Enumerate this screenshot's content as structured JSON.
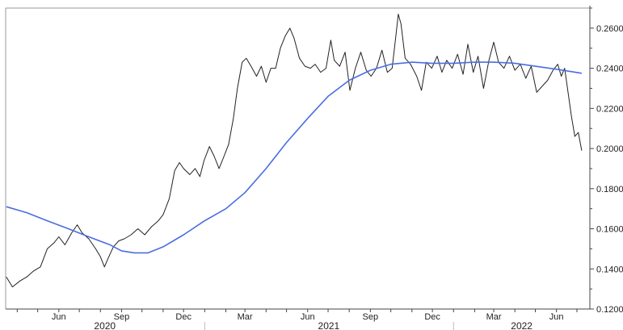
{
  "chart_data": {
    "type": "line",
    "title": "",
    "xlabel": "",
    "ylabel": "",
    "ylim": [
      0.12,
      0.27
    ],
    "y_axis_position": "right",
    "grid": false,
    "legend": "none",
    "y_ticks": [
      "0.1200",
      "0.1400",
      "0.1600",
      "0.1800",
      "0.2000",
      "0.2200",
      "0.2400",
      "0.2600"
    ],
    "x_month_ticks": [
      {
        "date": "2020-06-01",
        "label": "Jun"
      },
      {
        "date": "2020-09-01",
        "label": "Sep"
      },
      {
        "date": "2020-12-01",
        "label": "Dec"
      },
      {
        "date": "2021-03-01",
        "label": "Mar"
      },
      {
        "date": "2021-06-01",
        "label": "Jun"
      },
      {
        "date": "2021-09-01",
        "label": "Sep"
      },
      {
        "date": "2021-12-01",
        "label": "Dec"
      },
      {
        "date": "2022-03-01",
        "label": "Mar"
      },
      {
        "date": "2022-06-01",
        "label": "Jun"
      }
    ],
    "x_year_labels": [
      {
        "label": "2020",
        "start": "2020-03-15",
        "end": "2020-12-31"
      },
      {
        "label": "2021",
        "start": "2021-01-01",
        "end": "2021-12-31"
      },
      {
        "label": "2022",
        "start": "2022-01-01",
        "end": "2022-07-20"
      }
    ],
    "xlim": [
      "2020-03-15",
      "2022-07-20"
    ],
    "series": [
      {
        "color": "#222222",
        "points": [
          [
            "2020-03-16",
            0.136
          ],
          [
            "2020-03-25",
            0.131
          ],
          [
            "2020-04-05",
            0.134
          ],
          [
            "2020-04-15",
            0.136
          ],
          [
            "2020-04-25",
            0.139
          ],
          [
            "2020-05-05",
            0.141
          ],
          [
            "2020-05-15",
            0.15
          ],
          [
            "2020-05-25",
            0.153
          ],
          [
            "2020-06-01",
            0.156
          ],
          [
            "2020-06-10",
            0.152
          ],
          [
            "2020-06-20",
            0.158
          ],
          [
            "2020-06-28",
            0.162
          ],
          [
            "2020-07-05",
            0.158
          ],
          [
            "2020-07-15",
            0.155
          ],
          [
            "2020-07-25",
            0.15
          ],
          [
            "2020-08-01",
            0.146
          ],
          [
            "2020-08-07",
            0.141
          ],
          [
            "2020-08-12",
            0.145
          ],
          [
            "2020-08-20",
            0.151
          ],
          [
            "2020-08-28",
            0.154
          ],
          [
            "2020-09-05",
            0.155
          ],
          [
            "2020-09-15",
            0.157
          ],
          [
            "2020-09-25",
            0.16
          ],
          [
            "2020-10-05",
            0.157
          ],
          [
            "2020-10-15",
            0.161
          ],
          [
            "2020-10-25",
            0.164
          ],
          [
            "2020-11-01",
            0.167
          ],
          [
            "2020-11-10",
            0.175
          ],
          [
            "2020-11-18",
            0.189
          ],
          [
            "2020-11-25",
            0.193
          ],
          [
            "2020-12-01",
            0.19
          ],
          [
            "2020-12-10",
            0.187
          ],
          [
            "2020-12-18",
            0.19
          ],
          [
            "2020-12-25",
            0.186
          ],
          [
            "2020-12-31",
            0.194
          ],
          [
            "2021-01-08",
            0.201
          ],
          [
            "2021-01-15",
            0.196
          ],
          [
            "2021-01-22",
            0.19
          ],
          [
            "2021-01-28",
            0.195
          ],
          [
            "2021-02-05",
            0.202
          ],
          [
            "2021-02-12",
            0.215
          ],
          [
            "2021-02-18",
            0.23
          ],
          [
            "2021-02-25",
            0.243
          ],
          [
            "2021-03-03",
            0.245
          ],
          [
            "2021-03-10",
            0.241
          ],
          [
            "2021-03-18",
            0.236
          ],
          [
            "2021-03-25",
            0.241
          ],
          [
            "2021-04-01",
            0.233
          ],
          [
            "2021-04-08",
            0.24
          ],
          [
            "2021-04-15",
            0.24
          ],
          [
            "2021-04-22",
            0.25
          ],
          [
            "2021-04-29",
            0.256
          ],
          [
            "2021-05-06",
            0.26
          ],
          [
            "2021-05-12",
            0.255
          ],
          [
            "2021-05-20",
            0.245
          ],
          [
            "2021-05-28",
            0.241
          ],
          [
            "2021-06-05",
            0.24
          ],
          [
            "2021-06-12",
            0.242
          ],
          [
            "2021-06-20",
            0.238
          ],
          [
            "2021-06-28",
            0.24
          ],
          [
            "2021-07-05",
            0.254
          ],
          [
            "2021-07-10",
            0.244
          ],
          [
            "2021-07-18",
            0.241
          ],
          [
            "2021-07-26",
            0.248
          ],
          [
            "2021-08-02",
            0.229
          ],
          [
            "2021-08-10",
            0.24
          ],
          [
            "2021-08-18",
            0.248
          ],
          [
            "2021-08-26",
            0.239
          ],
          [
            "2021-09-02",
            0.236
          ],
          [
            "2021-09-10",
            0.24
          ],
          [
            "2021-09-18",
            0.249
          ],
          [
            "2021-09-26",
            0.238
          ],
          [
            "2021-10-03",
            0.24
          ],
          [
            "2021-10-08",
            0.255
          ],
          [
            "2021-10-12",
            0.267
          ],
          [
            "2021-10-16",
            0.262
          ],
          [
            "2021-10-22",
            0.245
          ],
          [
            "2021-10-30",
            0.242
          ],
          [
            "2021-11-08",
            0.236
          ],
          [
            "2021-11-15",
            0.229
          ],
          [
            "2021-11-22",
            0.243
          ],
          [
            "2021-11-30",
            0.24
          ],
          [
            "2021-12-08",
            0.246
          ],
          [
            "2021-12-15",
            0.238
          ],
          [
            "2021-12-22",
            0.244
          ],
          [
            "2021-12-30",
            0.24
          ],
          [
            "2022-01-07",
            0.247
          ],
          [
            "2022-01-15",
            0.237
          ],
          [
            "2022-01-22",
            0.252
          ],
          [
            "2022-01-30",
            0.238
          ],
          [
            "2022-02-06",
            0.246
          ],
          [
            "2022-02-14",
            0.23
          ],
          [
            "2022-02-22",
            0.244
          ],
          [
            "2022-03-01",
            0.253
          ],
          [
            "2022-03-08",
            0.243
          ],
          [
            "2022-03-16",
            0.24
          ],
          [
            "2022-03-24",
            0.246
          ],
          [
            "2022-04-01",
            0.239
          ],
          [
            "2022-04-09",
            0.242
          ],
          [
            "2022-04-17",
            0.235
          ],
          [
            "2022-04-25",
            0.241
          ],
          [
            "2022-05-03",
            0.228
          ],
          [
            "2022-05-11",
            0.231
          ],
          [
            "2022-05-19",
            0.234
          ],
          [
            "2022-05-27",
            0.239
          ],
          [
            "2022-06-03",
            0.242
          ],
          [
            "2022-06-08",
            0.236
          ],
          [
            "2022-06-13",
            0.24
          ],
          [
            "2022-06-18",
            0.228
          ],
          [
            "2022-06-23",
            0.216
          ],
          [
            "2022-06-28",
            0.206
          ],
          [
            "2022-07-03",
            0.208
          ],
          [
            "2022-07-08",
            0.199
          ]
        ]
      },
      {
        "color": "#4a6ee0",
        "points": [
          [
            "2020-03-16",
            0.171
          ],
          [
            "2020-04-15",
            0.168
          ],
          [
            "2020-05-15",
            0.164
          ],
          [
            "2020-06-15",
            0.16
          ],
          [
            "2020-07-15",
            0.156
          ],
          [
            "2020-08-15",
            0.152
          ],
          [
            "2020-09-01",
            0.149
          ],
          [
            "2020-09-20",
            0.148
          ],
          [
            "2020-10-10",
            0.148
          ],
          [
            "2020-11-01",
            0.151
          ],
          [
            "2020-12-01",
            0.157
          ],
          [
            "2021-01-01",
            0.164
          ],
          [
            "2021-02-01",
            0.17
          ],
          [
            "2021-03-01",
            0.178
          ],
          [
            "2021-04-01",
            0.19
          ],
          [
            "2021-05-01",
            0.203
          ],
          [
            "2021-06-01",
            0.215
          ],
          [
            "2021-07-01",
            0.226
          ],
          [
            "2021-08-01",
            0.234
          ],
          [
            "2021-09-01",
            0.239
          ],
          [
            "2021-10-01",
            0.242
          ],
          [
            "2021-11-01",
            0.243
          ],
          [
            "2021-12-01",
            0.2425
          ],
          [
            "2022-01-01",
            0.2425
          ],
          [
            "2022-02-01",
            0.243
          ],
          [
            "2022-03-01",
            0.243
          ],
          [
            "2022-04-01",
            0.2425
          ],
          [
            "2022-05-01",
            0.241
          ],
          [
            "2022-06-01",
            0.2395
          ],
          [
            "2022-07-08",
            0.2375
          ]
        ]
      }
    ]
  }
}
